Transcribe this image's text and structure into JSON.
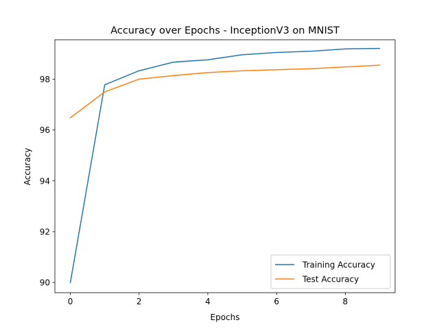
{
  "chart_data": {
    "type": "line",
    "title": "Accuracy over Epochs - InceptionV3 on MNIST",
    "xlabel": "Epochs",
    "ylabel": "Accuracy",
    "x": [
      0,
      1,
      2,
      3,
      4,
      5,
      6,
      7,
      8,
      9
    ],
    "xlim": [
      -0.45,
      9.45
    ],
    "ylim": [
      89.6,
      99.55
    ],
    "xticks": [
      0,
      2,
      4,
      6,
      8
    ],
    "yticks": [
      90,
      92,
      94,
      96,
      98
    ],
    "grid": false,
    "legend_position": "lower-right",
    "series": [
      {
        "name": "Training Accuracy",
        "color": "#1f77b4",
        "values": [
          90.0,
          97.78,
          98.33,
          98.67,
          98.76,
          98.96,
          99.05,
          99.1,
          99.19,
          99.21
        ]
      },
      {
        "name": "Test Accuracy",
        "color": "#ff7f0e",
        "values": [
          96.48,
          97.5,
          98.0,
          98.14,
          98.26,
          98.33,
          98.37,
          98.41,
          98.48,
          98.55
        ]
      }
    ]
  }
}
